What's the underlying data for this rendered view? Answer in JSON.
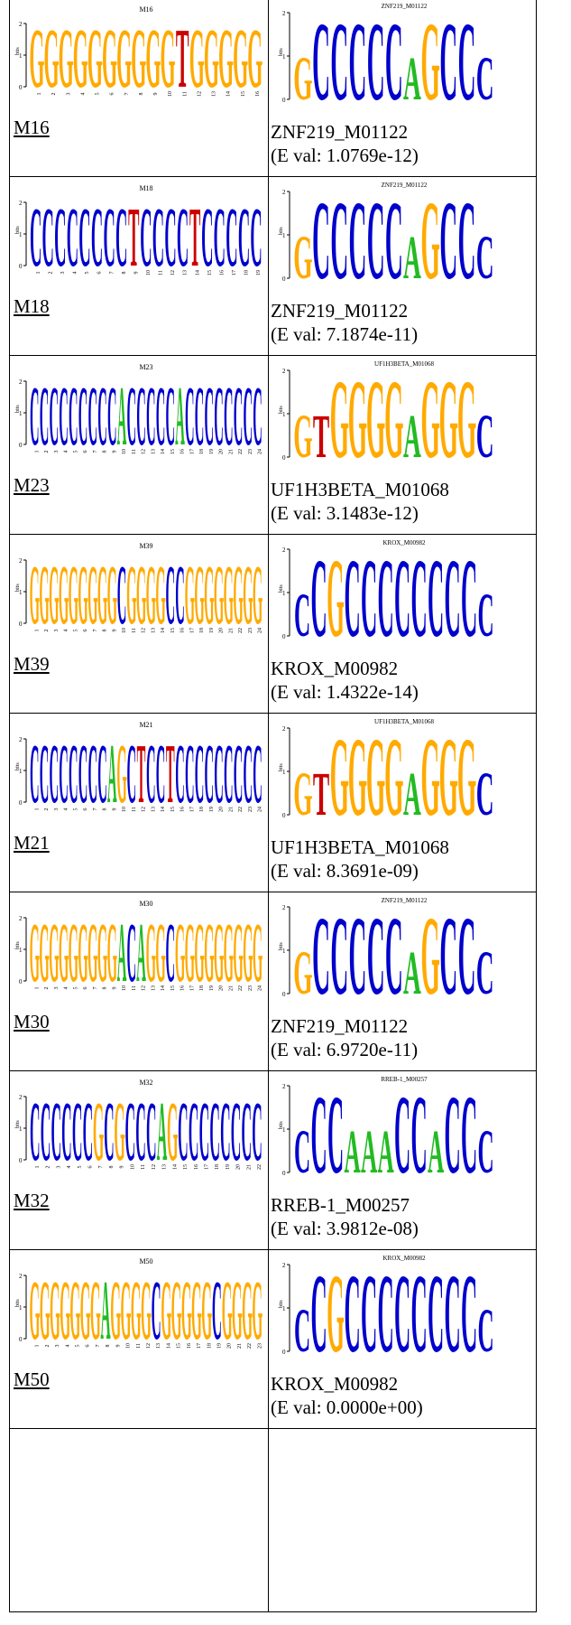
{
  "colors": {
    "A": "#22bb22",
    "C": "#0000cc",
    "G": "#ffaa00",
    "T": "#cc0000"
  },
  "axis_label": "bits",
  "rows": [
    {
      "motif_title": "M16",
      "motif_link": "M16",
      "motif_seq": "GGGGGGGGGGTGGGGG",
      "match_title": "ZNF219_M01122",
      "match_name": "ZNF219_M01122",
      "eval": "(E val: 1.0769e-12)"
    },
    {
      "motif_title": "M18",
      "motif_link": "M18",
      "motif_seq": "CCCCCCCCTCCCCTCCCCC",
      "match_title": "ZNF219_M01122",
      "match_name": "ZNF219_M01122",
      "eval": "(E val: 7.1874e-11)"
    },
    {
      "motif_title": "M23",
      "motif_link": "M23",
      "motif_seq": "CCCCCCCCCACCCCCACCCCCCCC",
      "match_title": "UF1H3BETA_M01068",
      "match_name": "UF1H3BETA_M01068",
      "eval": "(E val: 3.1483e-12)"
    },
    {
      "motif_title": "M39",
      "motif_link": "M39",
      "motif_seq": "GGGGGGGGGCGGGGCCGGGGGGGG",
      "match_title": "KROX_M00982",
      "match_name": "KROX_M00982",
      "eval": "(E val: 1.4322e-14)"
    },
    {
      "motif_title": "M21",
      "motif_link": "M21",
      "motif_seq": "CCCCCCCCAGCTCCTCCCCCCCCC",
      "match_title": "UF1H3BETA_M01068",
      "match_name": "UF1H3BETA_M01068",
      "eval": "(E val: 8.3691e-09)"
    },
    {
      "motif_title": "M30",
      "motif_link": "M30",
      "motif_seq": "GGGGGGGGGACAGGCGGGGGGGGG",
      "match_title": "ZNF219_M01122",
      "match_name": "ZNF219_M01122",
      "eval": "(E val: 6.9720e-11)"
    },
    {
      "motif_title": "M32",
      "motif_link": "M32",
      "motif_seq": "CCCCCCGCGCCCAGCCCCCCCC",
      "match_title": "RREB-1_M00257",
      "match_name": "RREB-1_M00257",
      "eval": "(E val: 3.9812e-08)"
    },
    {
      "motif_title": "M50",
      "motif_link": "M50",
      "motif_seq": "GGGGGGGAGGGGCGGGGGCGGGG",
      "match_title": "KROX_M00982",
      "match_name": "KROX_M00982",
      "eval": "(E val: 0.0000e+00)"
    }
  ]
}
